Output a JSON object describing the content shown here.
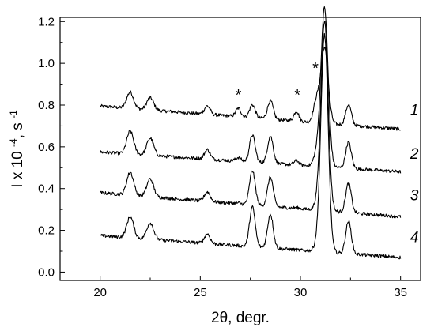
{
  "chart_data": {
    "type": "line",
    "title": "",
    "xlabel": "2θ, degr.",
    "ylabel": "I x 10 -4 , s -1",
    "ylabel_parts": {
      "main": "I x 10",
      "exp1": "-4",
      "mid": ", s",
      "exp2": "-1"
    },
    "xlim": [
      18,
      36
    ],
    "ylim": [
      -0.04,
      1.22
    ],
    "x_ticks": [
      20,
      25,
      30,
      35
    ],
    "x_tick_labels": [
      "20",
      "25",
      "30",
      "35"
    ],
    "y_ticks": [
      0.0,
      0.2,
      0.4,
      0.6,
      0.8,
      1.0,
      1.2
    ],
    "y_tick_labels": [
      "0.0",
      "0.2",
      "0.4",
      "0.6",
      "0.8",
      "1.0",
      "1.2"
    ],
    "grid": false,
    "x_range": [
      20,
      35
    ],
    "peaks": [
      {
        "pos": 21.5,
        "w": 0.17
      },
      {
        "pos": 22.5,
        "w": 0.17
      },
      {
        "pos": 25.35,
        "w": 0.14
      },
      {
        "pos": 27.6,
        "w": 0.14
      },
      {
        "pos": 28.5,
        "w": 0.14
      },
      {
        "pos": 31.2,
        "w": 0.18
      },
      {
        "pos": 32.4,
        "w": 0.14
      },
      {
        "pos": 26.9,
        "w": 0.13
      },
      {
        "pos": 29.8,
        "w": 0.12
      },
      {
        "pos": 30.8,
        "w": 0.15
      }
    ],
    "series": [
      {
        "name": "1",
        "baseline_start": 0.795,
        "baseline_end": 0.685,
        "heights": [
          0.078,
          0.058,
          0.04,
          0.062,
          0.088,
          0.36,
          0.098,
          0.04,
          0.048,
          0.1
        ]
      },
      {
        "name": "2",
        "baseline_start": 0.575,
        "baseline_end": 0.48,
        "heights": [
          0.11,
          0.082,
          0.045,
          0.13,
          0.13,
          0.76,
          0.125,
          0.018,
          0.022,
          0.05
        ]
      },
      {
        "name": "3",
        "baseline_start": 0.38,
        "baseline_end": 0.265,
        "heights": [
          0.11,
          0.085,
          0.045,
          0.165,
          0.14,
          0.91,
          0.14,
          0.004,
          0.004,
          0.02
        ]
      },
      {
        "name": "4",
        "baseline_start": 0.175,
        "baseline_end": 0.07,
        "heights": [
          0.1,
          0.078,
          0.045,
          0.19,
          0.162,
          1.04,
          0.155,
          0.0,
          0.0,
          0.02
        ]
      }
    ],
    "curve_label_anchor_y": [
      0.78,
      0.57,
      0.37,
      0.17
    ],
    "annotations": [
      {
        "text": "*",
        "x": 26.9,
        "y": 0.86
      },
      {
        "text": "*",
        "x": 29.85,
        "y": 0.86
      },
      {
        "text": "*",
        "x": 30.75,
        "y": 0.99
      }
    ]
  }
}
